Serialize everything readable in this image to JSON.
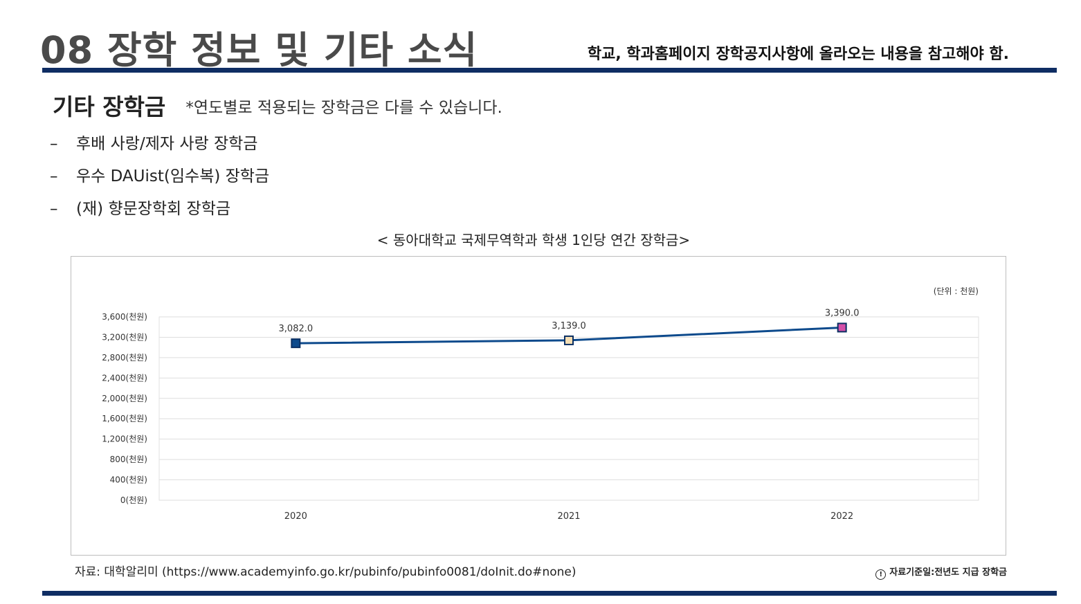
{
  "header": {
    "title": "08 장학 정보 및 기타 소식",
    "note": "학교, 학과홈페이지 장학공지사항에 올라오는 내용을 참고해야 함."
  },
  "section": {
    "title": "기타 장학금",
    "note": "*연도별로 적용되는 장학금은 다를 수 있습니다."
  },
  "bullets": [
    {
      "dash": "–",
      "text": "후배 사랑/제자 사랑 장학금"
    },
    {
      "dash": "–",
      "text": "우수 DAUist(임수복) 장학금"
    },
    {
      "dash": "–",
      "text": "(재) 향문장학회 장학금"
    }
  ],
  "chart_caption": "< 동아대학교 국제무역학과 학생 1인당 연간 장학금>",
  "chart_data": {
    "type": "line",
    "unit_label": "(단위 : 천원)",
    "categories": [
      "2020",
      "2021",
      "2022"
    ],
    "values": [
      3082.0,
      3139.0,
      3390.0
    ],
    "data_labels": [
      "3,082.0",
      "3,139.0",
      "3,390.0"
    ],
    "yticks": [
      0,
      400,
      800,
      1200,
      1600,
      2000,
      2400,
      2800,
      3200,
      3600
    ],
    "ytick_labels": [
      "0(천원)",
      "400(천원)",
      "800(천원)",
      "1,200(천원)",
      "1,600(천원)",
      "2,000(천원)",
      "2,400(천원)",
      "2,800(천원)",
      "3,200(천원)",
      "3,600(천원)"
    ],
    "ylim": [
      0,
      3600
    ],
    "grid": true,
    "line_color": "#0d4a8c",
    "marker_colors": [
      "#0d4a8c",
      "#f5deb3",
      "#d44fa8"
    ]
  },
  "footer": {
    "source": "자료: 대학알리미 (https://www.academyinfo.go.kr/pubinfo/pubinfo0081/doInit.do#none)",
    "basis_icon": "!",
    "basis": "자료기준일:전년도 지급 장학금"
  }
}
